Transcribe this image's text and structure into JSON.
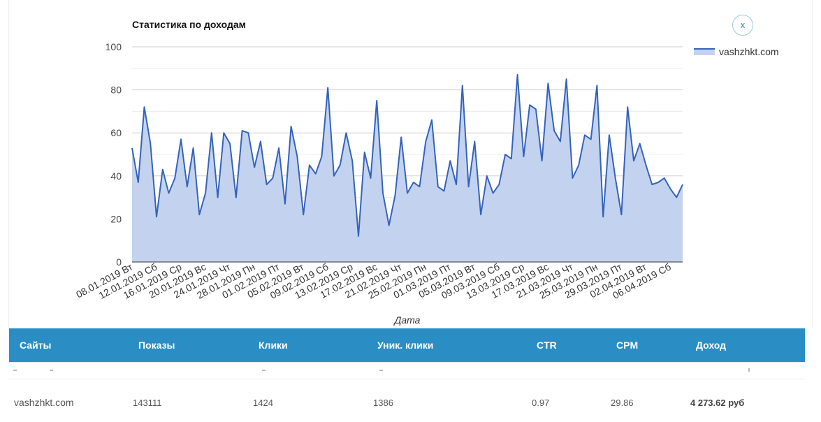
{
  "panel": {
    "title": "Статистика по доходам",
    "close_label": "x"
  },
  "colors": {
    "line": "#3563bb",
    "area": "#c3d3ef",
    "header_bg": "#2a8ec4",
    "grid": "#cccccc"
  },
  "legend": {
    "label": "vashzhkt.com"
  },
  "chart_data": {
    "type": "area",
    "xlabel": "Дата",
    "ylabel": "",
    "ylim": [
      0,
      100
    ],
    "yticks": [
      0,
      20,
      40,
      60,
      80,
      100
    ],
    "grid": true,
    "legend_position": "top-right",
    "x_tick_labels": [
      "08.01.2019 Вт",
      "12.01.2019 Сб",
      "16.01.2019 Ср",
      "20.01.2019 Вс",
      "24.01.2019 Чт",
      "28.01.2019 Пн",
      "01.02.2019 Пт",
      "05.02.2019 Вт",
      "09.02.2019 Сб",
      "13.02.2019 Ср",
      "17.02.2019 Вс",
      "21.02.2019 Чт",
      "25.02.2019 Пн",
      "01.03.2019 Пт",
      "05.03.2019 Вт",
      "09.03.2019 Сб",
      "13.03.2019 Ср",
      "17.03.2019 Вс",
      "21.03.2019 Чт",
      "25.03.2019 Пн",
      "29.03.2019 Пт",
      "02.04.2019 Вт",
      "06.04.2019 Сб"
    ],
    "series": [
      {
        "name": "vashzhkt.com",
        "values": [
          53,
          37,
          72,
          55,
          21,
          43,
          32,
          39,
          57,
          35,
          53,
          22,
          32,
          60,
          30,
          60,
          55,
          30,
          61,
          60,
          44,
          56,
          36,
          39,
          53,
          27,
          63,
          49,
          22,
          45,
          41,
          49,
          81,
          40,
          45,
          60,
          47,
          12,
          51,
          39,
          75,
          32,
          17,
          31,
          58,
          32,
          37,
          35,
          56,
          66,
          35,
          33,
          47,
          36,
          82,
          35,
          56,
          22,
          40,
          32,
          36,
          50,
          48,
          87,
          49,
          73,
          71,
          47,
          83,
          61,
          56,
          85,
          39,
          45,
          59,
          57,
          82,
          21,
          59,
          39,
          22,
          72,
          47,
          55,
          45,
          36,
          37,
          39,
          34,
          30,
          36
        ]
      }
    ]
  },
  "table": {
    "columns": [
      "Сайты",
      "Показы",
      "Клики",
      "Уник. клики",
      "CTR",
      "CPM",
      "Доход"
    ],
    "row": {
      "site": "vashzhkt.com",
      "impressions": "143111",
      "clicks": "1424",
      "unique_clicks": "1386",
      "ctr": "0.97",
      "cpm": "29.86",
      "income": "4 273.62 руб"
    }
  }
}
